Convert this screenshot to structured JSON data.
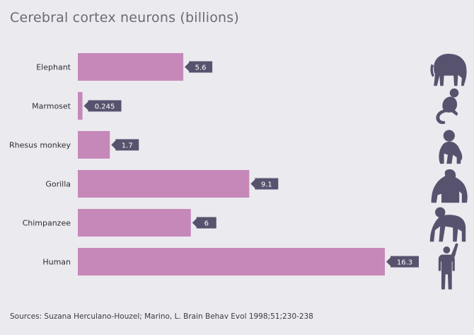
{
  "chart_data": {
    "type": "bar",
    "orientation": "horizontal",
    "title": "Cerebral cortex neurons (billions)",
    "categories": [
      "Elephant",
      "Marmoset",
      "Rhesus monkey",
      "Gorilla",
      "Chimpanzee",
      "Human"
    ],
    "values": [
      5.6,
      0.245,
      1.7,
      9.1,
      6,
      16.3
    ],
    "value_labels": [
      "5.6",
      "0.245",
      "1.7",
      "9.1",
      "6",
      "16.3"
    ],
    "icons": [
      "elephant-icon",
      "marmoset-icon",
      "rhesus-monkey-icon",
      "gorilla-icon",
      "chimpanzee-icon",
      "human-icon"
    ],
    "xlim": [
      0,
      16.3
    ],
    "grid": false,
    "colors": {
      "bar": "#c688b8",
      "label_bg": "#57536e",
      "icon": "#57536e",
      "background": "#ebeaef"
    }
  },
  "source": "Sources: Suzana Herculano-Houzel; Marino, L. Brain Behav Evol 1998;51;230-238"
}
